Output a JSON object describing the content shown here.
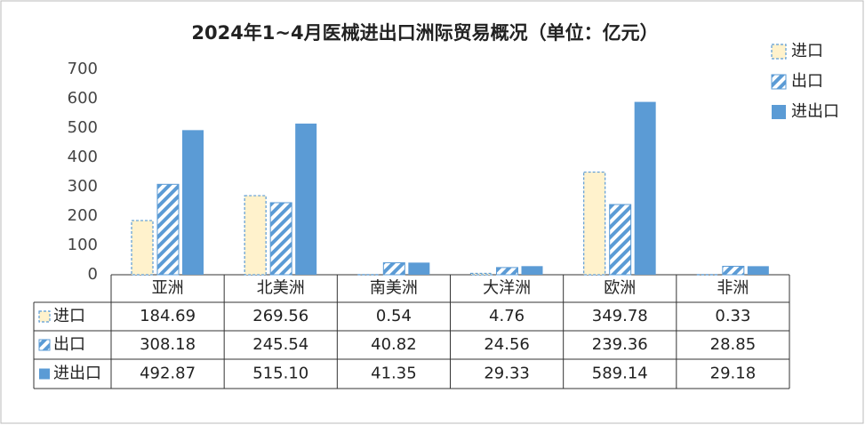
{
  "chart_data": {
    "type": "bar",
    "title": "2024年1~4月医械进出口洲际贸易概况（单位：亿元）",
    "categories": [
      "亚洲",
      "北美洲",
      "南美洲",
      "大洋洲",
      "欧洲",
      "非洲"
    ],
    "series": [
      {
        "name": "进口",
        "color": "#fff2cc",
        "values": [
          184.69,
          269.56,
          0.54,
          4.76,
          349.78,
          0.33
        ],
        "value_labels": [
          "184.69",
          "269.56",
          "0.54",
          "4.76",
          "349.78",
          "0.33"
        ]
      },
      {
        "name": "出口",
        "color": "#5b9bd5",
        "values": [
          308.18,
          245.54,
          40.82,
          24.56,
          239.36,
          28.85
        ],
        "value_labels": [
          "308.18",
          "245.54",
          "40.82",
          "24.56",
          "239.36",
          "28.85"
        ]
      },
      {
        "name": "进出口",
        "color": "#5b9bd5",
        "values": [
          492.87,
          515.1,
          41.35,
          29.33,
          589.14,
          29.18
        ],
        "value_labels": [
          "492.87",
          "515.10",
          "41.35",
          "29.33",
          "589.14",
          "29.18"
        ]
      }
    ],
    "ylim": [
      0,
      700
    ],
    "yticks": [
      0,
      100,
      200,
      300,
      400,
      500,
      600,
      700
    ],
    "grid": false,
    "legend": "top-right"
  }
}
